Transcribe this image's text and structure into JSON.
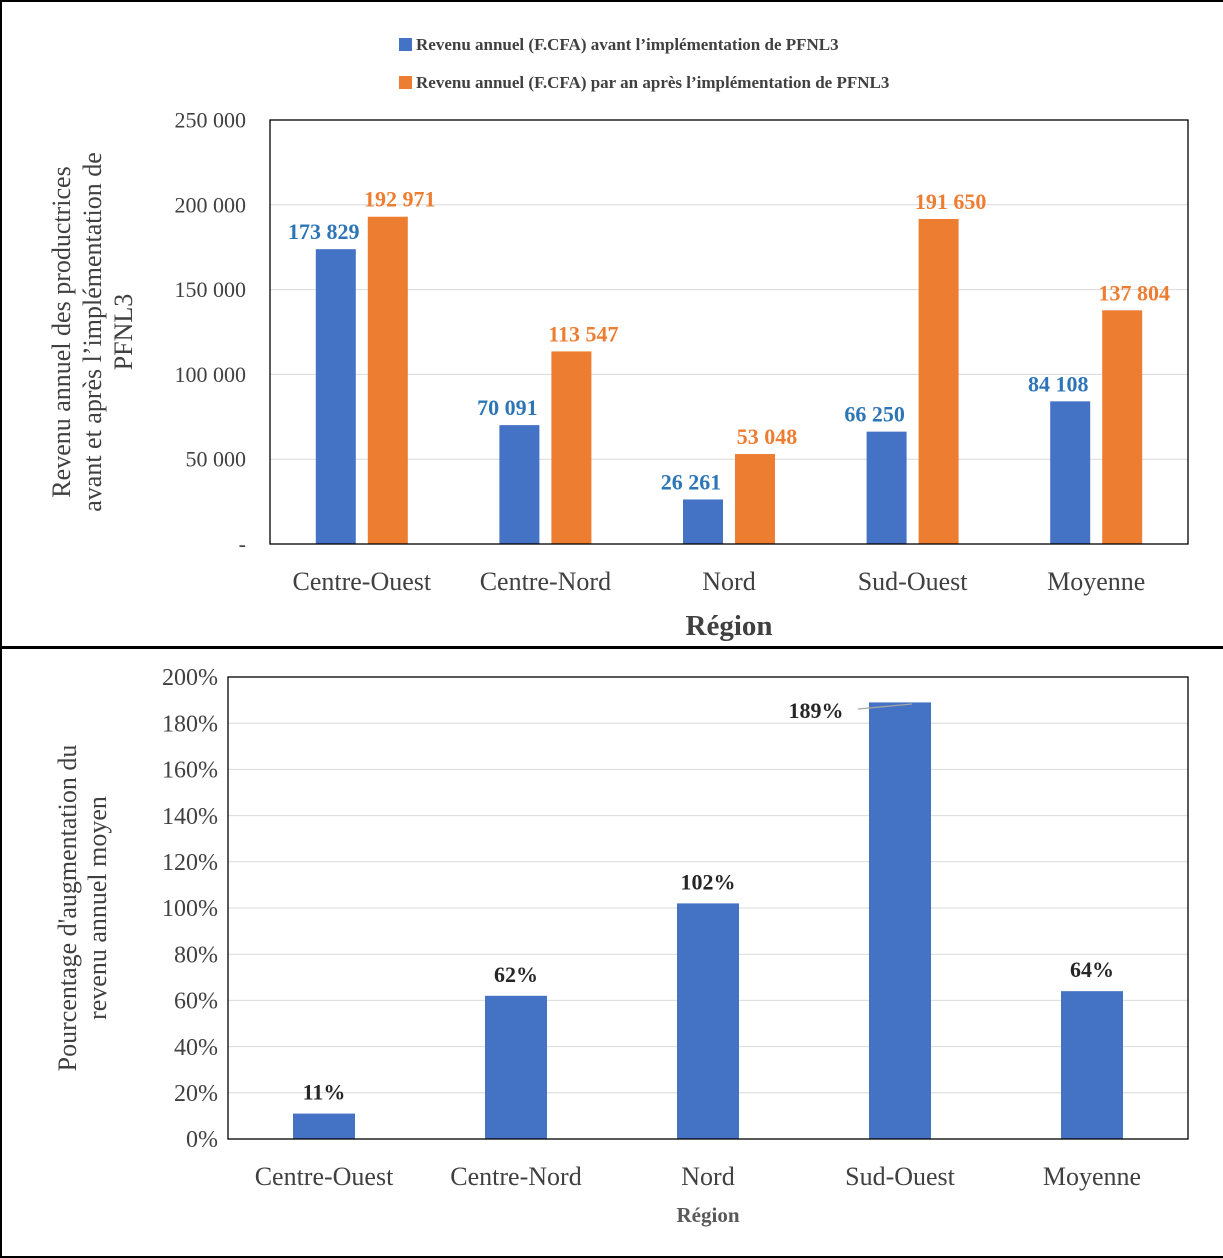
{
  "chart_data": [
    {
      "type": "bar",
      "title": "",
      "categories": [
        "Centre-Ouest",
        "Centre-Nord",
        "Nord",
        "Sud-Ouest",
        "Moyenne"
      ],
      "series": [
        {
          "name": "Revenu annuel  (F.CFA) avant l’implémentation de PFNL3",
          "values": [
            173829,
            70091,
            26261,
            66250,
            84108
          ],
          "labels": [
            "173 829",
            "70 091",
            "26 261",
            "66 250",
            "84 108"
          ],
          "color": "#4472C4",
          "label_color": "#2E75B6"
        },
        {
          "name": "Revenu annuel (F.CFA) par an après l’implémentation de PFNL3",
          "values": [
            192971,
            113547,
            53048,
            191650,
            137804
          ],
          "labels": [
            "192 971",
            "113 547",
            "53 048",
            "191 650",
            "137 804"
          ],
          "color": "#ED7D31",
          "label_color": "#ED7D31"
        }
      ],
      "xlabel": "Région",
      "ylabel_lines": [
        "Revenu annuel  des productrices",
        "avant et après l’implémentation de",
        "PFNL3"
      ],
      "ylim": [
        0,
        250000
      ],
      "yticks": [
        0,
        50000,
        100000,
        150000,
        200000,
        250000
      ],
      "ytick_labels": [
        "-",
        "50 000",
        "100 000",
        "150 000",
        "200 000",
        "250 000"
      ],
      "legend_position": "top",
      "grid": true
    },
    {
      "type": "bar",
      "title": "",
      "categories": [
        "Centre-Ouest",
        "Centre-Nord",
        "Nord",
        "Sud-Ouest",
        "Moyenne"
      ],
      "series": [
        {
          "values": [
            11,
            62,
            102,
            189,
            64
          ],
          "labels": [
            "11%",
            "62%",
            "102%",
            "189%",
            "64%"
          ],
          "color": "#4472C4",
          "label_color": "#262626"
        }
      ],
      "xlabel": "Région",
      "ylabel_lines": [
        "Pourcentage d'augmentation du",
        "revenu annuel moyen"
      ],
      "ylim": [
        0,
        200
      ],
      "yticks": [
        0,
        20,
        40,
        60,
        80,
        100,
        120,
        140,
        160,
        180,
        200
      ],
      "ytick_labels": [
        "0%",
        "20%",
        "40%",
        "60%",
        "80%",
        "100%",
        "120%",
        "140%",
        "160%",
        "180%",
        "200%"
      ],
      "legend_position": "none",
      "grid": true
    }
  ]
}
